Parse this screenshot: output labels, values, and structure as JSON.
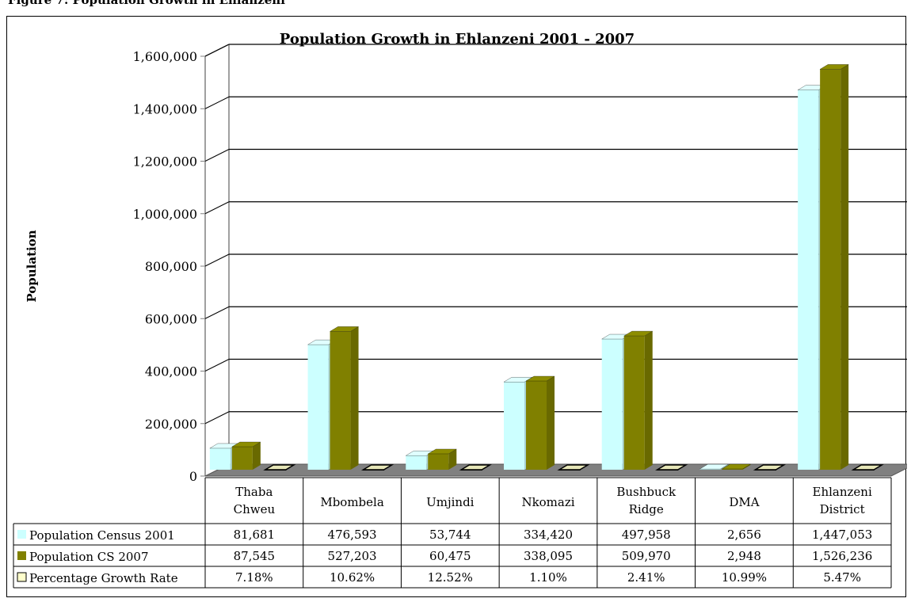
{
  "caption": "Figure 7: Population Growth in Ehlanzeni",
  "chart_data": {
    "type": "bar",
    "title": "Population Growth in Ehlanzeni 2001 - 2007",
    "ylabel": "Population",
    "ylim": [
      0,
      1600000
    ],
    "yticks": [
      "0",
      "200,000",
      "400,000",
      "600,000",
      "800,000",
      "1,000,000",
      "1,200,000",
      "1,400,000",
      "1,600,000"
    ],
    "grid": true,
    "categories": [
      [
        "Thaba",
        "Chweu"
      ],
      [
        "Mbombela"
      ],
      [
        "Umjindi"
      ],
      [
        "Nkomazi"
      ],
      [
        "Bushbuck",
        "Ridge"
      ],
      [
        "DMA"
      ],
      [
        "Ehlanzeni",
        "District"
      ]
    ],
    "series": [
      {
        "name": "Population Census 2001",
        "color": "#ccffff",
        "values": [
          81681,
          476593,
          53744,
          334420,
          497958,
          2656,
          1447053
        ],
        "labels": [
          "81,681",
          "476,593",
          "53,744",
          "334,420",
          "497,958",
          "2,656",
          "1,447,053"
        ]
      },
      {
        "name": "Population CS 2007",
        "color": "#808000",
        "values": [
          87545,
          527203,
          60475,
          338095,
          509970,
          2948,
          1526236
        ],
        "labels": [
          "87,545",
          "527,203",
          "60,475",
          "338,095",
          "509,970",
          "2,948",
          "1,526,236"
        ]
      },
      {
        "name": "Percentage Growth Rate",
        "color": "#ffffcc",
        "values": [
          7.18,
          10.62,
          12.52,
          1.1,
          2.41,
          10.99,
          5.47
        ],
        "labels": [
          "7.18%",
          "10.62%",
          "12.52%",
          "1.10%",
          "2.41%",
          "10.99%",
          "5.47%"
        ]
      }
    ]
  }
}
